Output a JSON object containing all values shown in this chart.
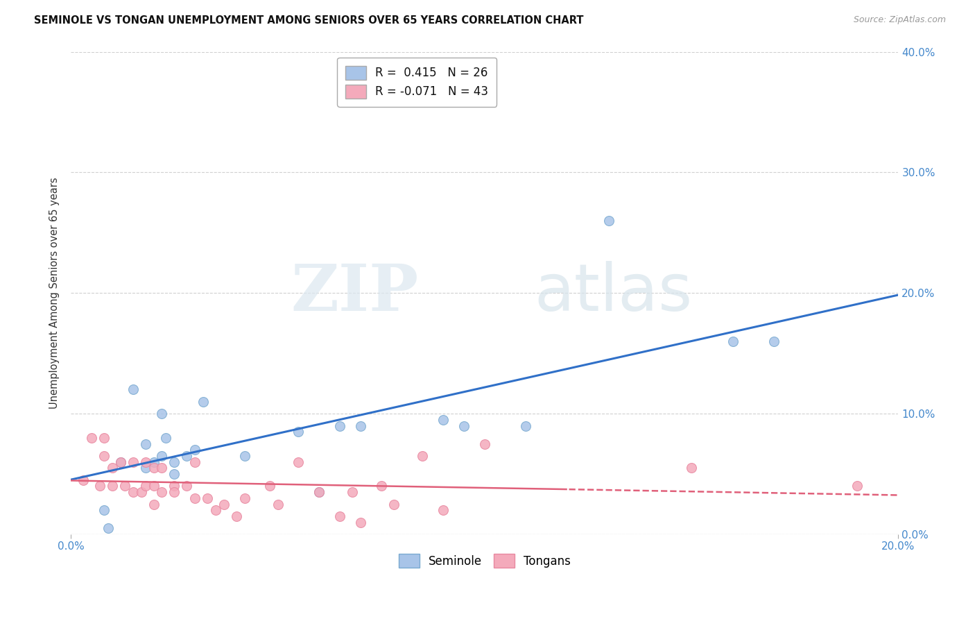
{
  "title": "SEMINOLE VS TONGAN UNEMPLOYMENT AMONG SENIORS OVER 65 YEARS CORRELATION CHART",
  "source": "Source: ZipAtlas.com",
  "ylabel": "Unemployment Among Seniors over 65 years",
  "xlim": [
    0.0,
    0.2
  ],
  "ylim": [
    0.0,
    0.4
  ],
  "xtick_positions": [
    0.0,
    0.2
  ],
  "xtick_labels": [
    "0.0%",
    "20.0%"
  ],
  "ytick_positions": [
    0.0,
    0.1,
    0.2,
    0.3,
    0.4
  ],
  "ytick_labels": [
    "0.0%",
    "10.0%",
    "20.0%",
    "30.0%",
    "40.0%"
  ],
  "seminole_color": "#a8c4e8",
  "tongan_color": "#f4aabb",
  "seminole_edge_color": "#7aaad0",
  "tongan_edge_color": "#e888a0",
  "seminole_line_color": "#3070c8",
  "tongan_line_color": "#e0607a",
  "seminole_R": 0.415,
  "seminole_N": 26,
  "tongan_R": -0.071,
  "tongan_N": 43,
  "watermark_zip": "ZIP",
  "watermark_atlas": "atlas",
  "tongan_dash_split": 0.12,
  "seminole_x": [
    0.008,
    0.009,
    0.012,
    0.015,
    0.018,
    0.018,
    0.02,
    0.022,
    0.022,
    0.023,
    0.025,
    0.025,
    0.028,
    0.03,
    0.032,
    0.042,
    0.055,
    0.06,
    0.065,
    0.07,
    0.09,
    0.095,
    0.11,
    0.13,
    0.16,
    0.17
  ],
  "seminole_y": [
    0.02,
    0.005,
    0.06,
    0.12,
    0.055,
    0.075,
    0.06,
    0.065,
    0.1,
    0.08,
    0.06,
    0.05,
    0.065,
    0.07,
    0.11,
    0.065,
    0.085,
    0.035,
    0.09,
    0.09,
    0.095,
    0.09,
    0.09,
    0.26,
    0.16,
    0.16
  ],
  "tongan_x": [
    0.003,
    0.005,
    0.007,
    0.008,
    0.008,
    0.01,
    0.01,
    0.012,
    0.013,
    0.015,
    0.015,
    0.017,
    0.018,
    0.018,
    0.02,
    0.02,
    0.02,
    0.022,
    0.022,
    0.025,
    0.025,
    0.028,
    0.03,
    0.03,
    0.033,
    0.035,
    0.037,
    0.04,
    0.042,
    0.048,
    0.05,
    0.055,
    0.06,
    0.065,
    0.068,
    0.07,
    0.075,
    0.078,
    0.085,
    0.09,
    0.1,
    0.15,
    0.19
  ],
  "tongan_y": [
    0.045,
    0.08,
    0.04,
    0.08,
    0.065,
    0.04,
    0.055,
    0.06,
    0.04,
    0.035,
    0.06,
    0.035,
    0.06,
    0.04,
    0.055,
    0.025,
    0.04,
    0.055,
    0.035,
    0.04,
    0.035,
    0.04,
    0.03,
    0.06,
    0.03,
    0.02,
    0.025,
    0.015,
    0.03,
    0.04,
    0.025,
    0.06,
    0.035,
    0.015,
    0.035,
    0.01,
    0.04,
    0.025,
    0.065,
    0.02,
    0.075,
    0.055,
    0.04
  ],
  "background_color": "#ffffff",
  "grid_color": "#d0d0d0",
  "marker_size": 100
}
